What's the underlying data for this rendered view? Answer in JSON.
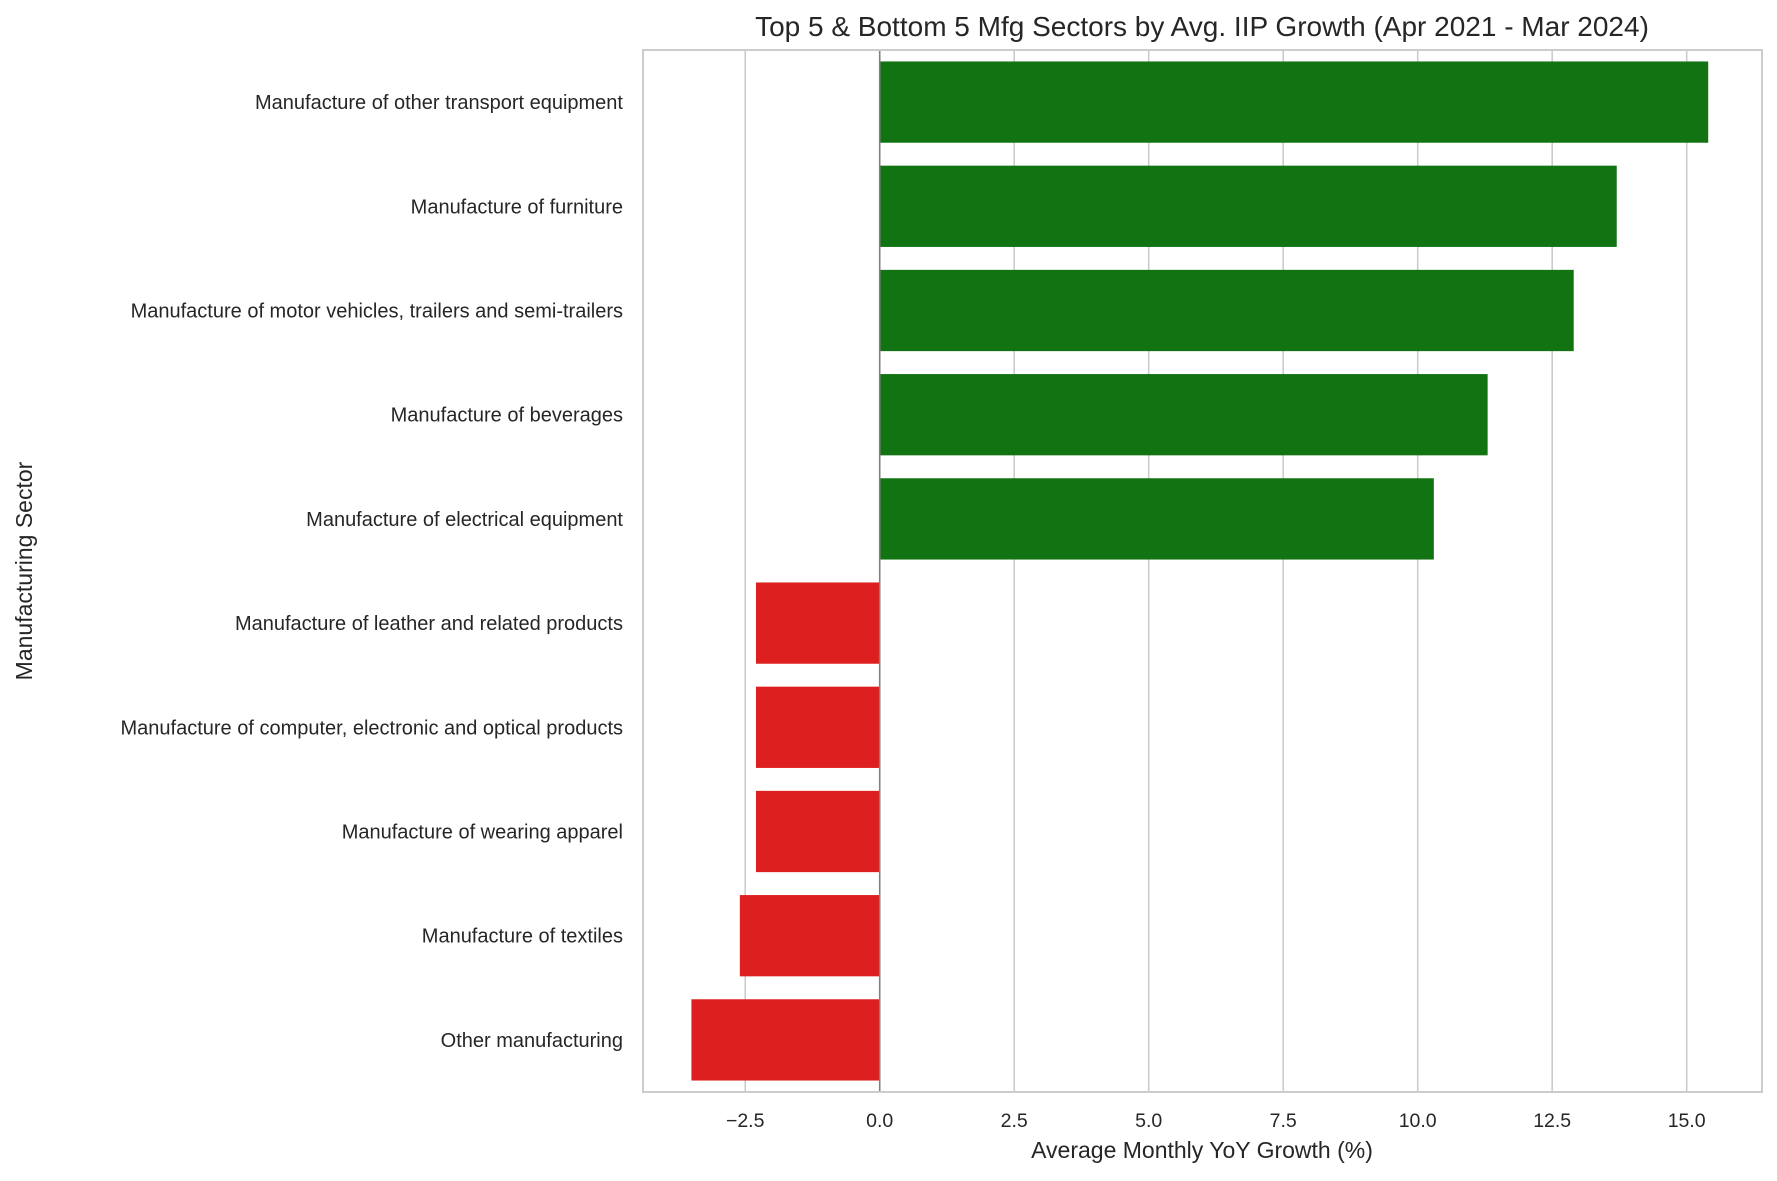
{
  "chart_data": {
    "type": "bar",
    "orientation": "horizontal",
    "title": "Top 5 & Bottom 5 Mfg Sectors by Avg. IIP Growth (Apr 2021 - Mar 2024)",
    "xlabel": "Average Monthly YoY Growth (%)",
    "ylabel": "Manufacturing Sector",
    "xlim": [
      -4.4,
      16.4
    ],
    "xticks": [
      -2.5,
      0.0,
      2.5,
      5.0,
      7.5,
      10.0,
      12.5,
      15.0
    ],
    "xtick_labels": [
      "−2.5",
      "0.0",
      "2.5",
      "5.0",
      "7.5",
      "10.0",
      "12.5",
      "15.0"
    ],
    "grid": "vertical",
    "zero_line": true,
    "categories": [
      "Manufacture of other transport equipment",
      "Manufacture of furniture",
      "Manufacture of motor vehicles, trailers and semi-trailers",
      "Manufacture of beverages",
      "Manufacture of electrical equipment",
      "Manufacture of leather and related products",
      "Manufacture of computer, electronic and optical products",
      "Manufacture of wearing apparel",
      "Manufacture of textiles",
      "Other manufacturing"
    ],
    "values": [
      15.4,
      13.7,
      12.9,
      11.3,
      10.3,
      -2.3,
      -2.3,
      -2.3,
      -2.6,
      -3.5
    ],
    "colors": {
      "positive": "#117311",
      "negative": "#de1f1f",
      "grid": "#cccccc",
      "frame": "#cccccc",
      "zero_line": "#808080"
    }
  }
}
